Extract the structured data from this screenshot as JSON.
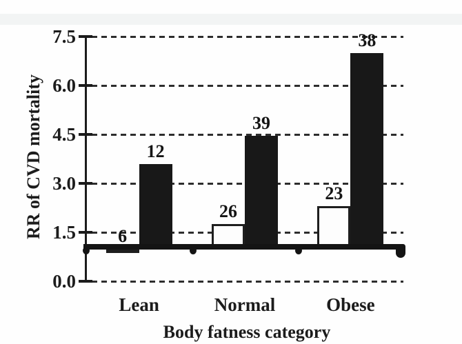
{
  "chart_data": {
    "type": "bar",
    "title": "",
    "xlabel": "Body fatness category",
    "ylabel": "RR of CVD mortality",
    "categories": [
      "Lean",
      "Normal",
      "Obese"
    ],
    "series": [
      {
        "name": "open bars (white)",
        "fill": "white",
        "values": [
          1.0,
          1.75,
          2.3
        ],
        "labels": [
          "6",
          "26",
          "23"
        ]
      },
      {
        "name": "filled bars (black)",
        "fill": "black",
        "values": [
          3.6,
          4.45,
          7.0
        ],
        "labels": [
          "12",
          "39",
          "38"
        ]
      }
    ],
    "yticks": [
      "0.0",
      "1.5",
      "3.0",
      "4.5",
      "6.0",
      "7.5"
    ],
    "ytick_values": [
      0,
      1.5,
      3,
      4.5,
      6,
      7.5
    ],
    "ylim": [
      0,
      7.5
    ],
    "reference_line_value": 1.0,
    "grid": "horizontal dashed gridlines at every y tick",
    "legend": "none",
    "ink_color": "#181818",
    "paper_color": "#fefefe"
  }
}
